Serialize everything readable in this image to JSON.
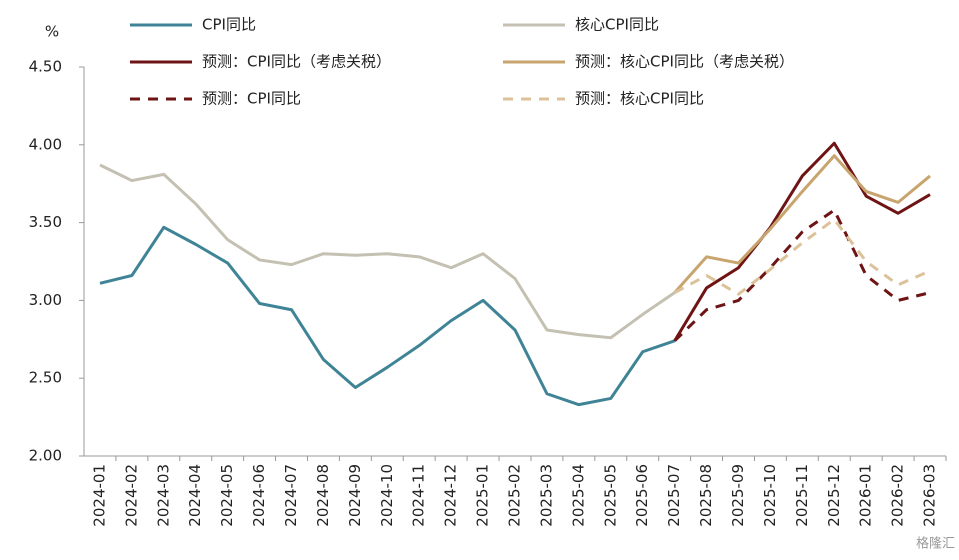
{
  "chart_data": {
    "type": "line",
    "y_unit": "%",
    "categories": [
      "2024-01",
      "2024-02",
      "2024-03",
      "2024-04",
      "2024-05",
      "2024-06",
      "2024-07",
      "2024-08",
      "2024-09",
      "2024-10",
      "2024-11",
      "2024-12",
      "2025-01",
      "2025-02",
      "2025-03",
      "2025-04",
      "2025-05",
      "2025-06",
      "2025-07",
      "2025-08",
      "2025-09",
      "2025-10",
      "2025-11",
      "2025-12",
      "2026-01",
      "2026-02",
      "2026-03"
    ],
    "series": [
      {
        "name": "CPI同比",
        "color": "#3f8496",
        "dash": false,
        "values": [
          3.11,
          3.16,
          3.47,
          3.36,
          3.24,
          2.98,
          2.94,
          2.62,
          2.44,
          2.57,
          2.71,
          2.87,
          3.0,
          2.81,
          2.4,
          2.33,
          2.37,
          2.67,
          2.74,
          null,
          null,
          null,
          null,
          null,
          null,
          null,
          null
        ]
      },
      {
        "name": "核心CPI同比",
        "color": "#c4c1b2",
        "dash": false,
        "values": [
          3.87,
          3.77,
          3.81,
          3.62,
          3.39,
          3.26,
          3.23,
          3.3,
          3.29,
          3.3,
          3.28,
          3.21,
          3.3,
          3.14,
          2.81,
          2.78,
          2.76,
          2.91,
          3.05,
          null,
          null,
          null,
          null,
          null,
          null,
          null,
          null
        ]
      },
      {
        "name": "预测：CPI同比（考虑关税）",
        "color": "#6e1414",
        "dash": false,
        "values": [
          null,
          null,
          null,
          null,
          null,
          null,
          null,
          null,
          null,
          null,
          null,
          null,
          null,
          null,
          null,
          null,
          null,
          null,
          2.74,
          3.08,
          3.21,
          3.47,
          3.8,
          4.01,
          3.67,
          3.56,
          3.68
        ]
      },
      {
        "name": "预测：核心CPI同比（考虑关税）",
        "color": "#c8a46e",
        "dash": false,
        "values": [
          null,
          null,
          null,
          null,
          null,
          null,
          null,
          null,
          null,
          null,
          null,
          null,
          null,
          null,
          null,
          null,
          null,
          null,
          3.05,
          3.28,
          3.24,
          3.46,
          3.7,
          3.93,
          3.7,
          3.63,
          3.8
        ]
      },
      {
        "name": "预测：CPI同比",
        "color": "#6e1414",
        "dash": true,
        "values": [
          null,
          null,
          null,
          null,
          null,
          null,
          null,
          null,
          null,
          null,
          null,
          null,
          null,
          null,
          null,
          null,
          null,
          null,
          2.74,
          2.94,
          3.0,
          3.21,
          3.44,
          3.58,
          3.16,
          3.0,
          3.05
        ]
      },
      {
        "name": "预测：核心CPI同比",
        "color": "#dcc29a",
        "dash": true,
        "values": [
          null,
          null,
          null,
          null,
          null,
          null,
          null,
          null,
          null,
          null,
          null,
          null,
          null,
          null,
          null,
          null,
          null,
          null,
          3.05,
          3.16,
          3.04,
          3.2,
          3.37,
          3.52,
          3.25,
          3.1,
          3.19
        ]
      }
    ],
    "ylim": [
      2,
      4.5
    ],
    "yticks": [
      {
        "value": 2,
        "label": "2.00"
      },
      {
        "value": 2.5,
        "label": "2.50"
      },
      {
        "value": 3,
        "label": "3.00"
      },
      {
        "value": 3.5,
        "label": "3.50"
      },
      {
        "value": 4,
        "label": "4.00"
      },
      {
        "value": 4.5,
        "label": "4.50"
      }
    ],
    "watermark": "格隆汇"
  }
}
